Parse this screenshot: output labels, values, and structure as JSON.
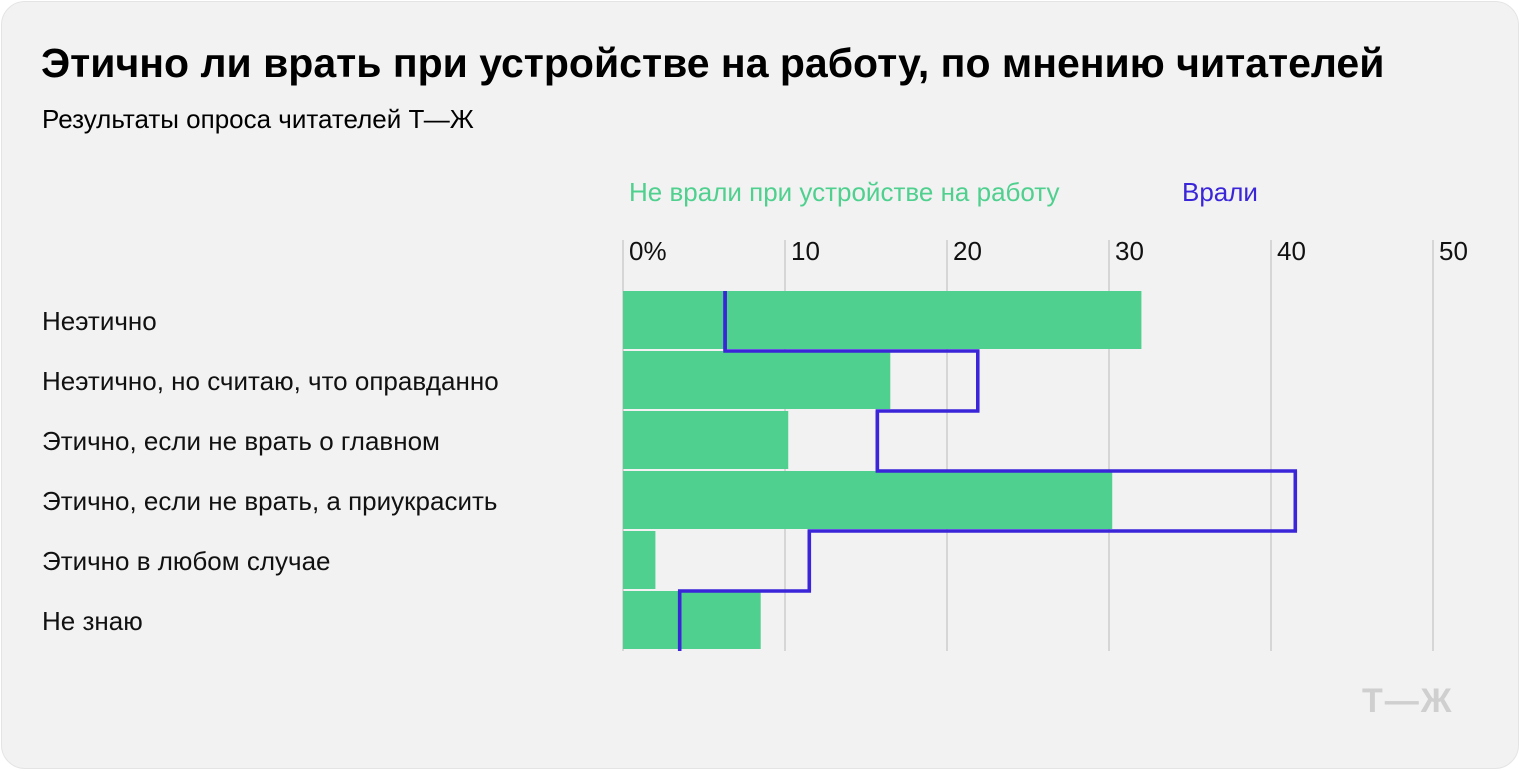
{
  "chart_data": {
    "type": "bar",
    "title": "Этично ли врать при устройстве на работу, по мнению читателей",
    "subtitle": "Результаты опроса читателей Т—Ж",
    "categories": [
      "Неэтично",
      "Неэтично, но считаю, что оправданно",
      "Этично, если не врать о главном",
      "Этично, если не врать, а приукрасить",
      "Этично в любом случае",
      "Не знаю"
    ],
    "series": [
      {
        "name": "Не врали при устройстве на работу",
        "style": "bar",
        "color": "#4fd08f",
        "values": [
          32,
          16.5,
          10.2,
          30.2,
          2,
          8.5
        ]
      },
      {
        "name": "Врали",
        "style": "step-outline",
        "color": "#3a25d9",
        "values": [
          6.3,
          21.9,
          15.7,
          41.5,
          11.5,
          3.5
        ]
      }
    ],
    "x_ticks": [
      "0%",
      "10",
      "20",
      "30",
      "40",
      "50"
    ],
    "xlim": [
      0,
      50
    ],
    "grid": true,
    "legend_position": "top"
  },
  "logo": "Т—Ж"
}
